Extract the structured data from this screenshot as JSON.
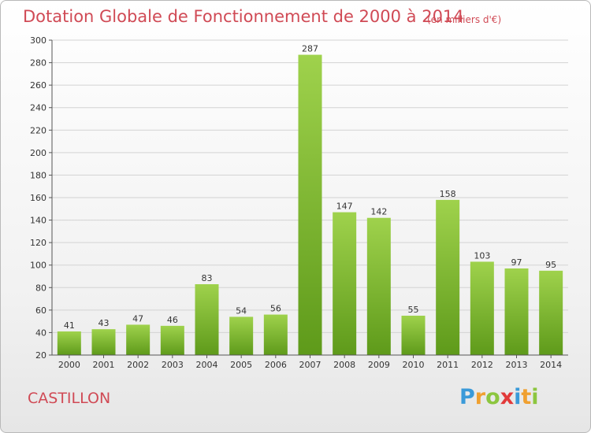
{
  "header": {
    "title": "Dotation Globale de Fonctionnement de 2000 à 2014",
    "subtitle": "(en milliers d'€)"
  },
  "footer": {
    "commune": "CASTILLON",
    "logo_letters": [
      "P",
      "r",
      "o",
      "x",
      "i",
      "t",
      "i"
    ],
    "logo_colors": [
      "#3a9ad9",
      "#f0a030",
      "#8cc63f",
      "#e23a3a",
      "#3a9ad9",
      "#f0a030",
      "#8cc63f"
    ]
  },
  "colors": {
    "bar_top": "#9fd24c",
    "bar_bottom": "#5e9a1a",
    "title": "#d04a55"
  },
  "chart_data": {
    "type": "bar",
    "categories": [
      "2000",
      "2001",
      "2002",
      "2003",
      "2004",
      "2005",
      "2006",
      "2007",
      "2008",
      "2009",
      "2010",
      "2011",
      "2012",
      "2013",
      "2014"
    ],
    "values": [
      41,
      43,
      47,
      46,
      83,
      54,
      56,
      287,
      147,
      142,
      55,
      158,
      103,
      97,
      95
    ],
    "title": "Dotation Globale de Fonctionnement de 2000 à 2014",
    "ylabel": "",
    "xlabel": "",
    "ylim": [
      20,
      300
    ],
    "yticks": [
      "20",
      "40",
      "60",
      "80",
      "100",
      "120",
      "140",
      "160",
      "180",
      "200",
      "220",
      "240",
      "260",
      "280",
      "300"
    ],
    "grid": true,
    "data_labels": [
      "41",
      "43",
      "47",
      "46",
      "83",
      "54",
      "56",
      "287",
      "147",
      "142",
      "55",
      "158",
      "103",
      "97",
      "95"
    ]
  }
}
